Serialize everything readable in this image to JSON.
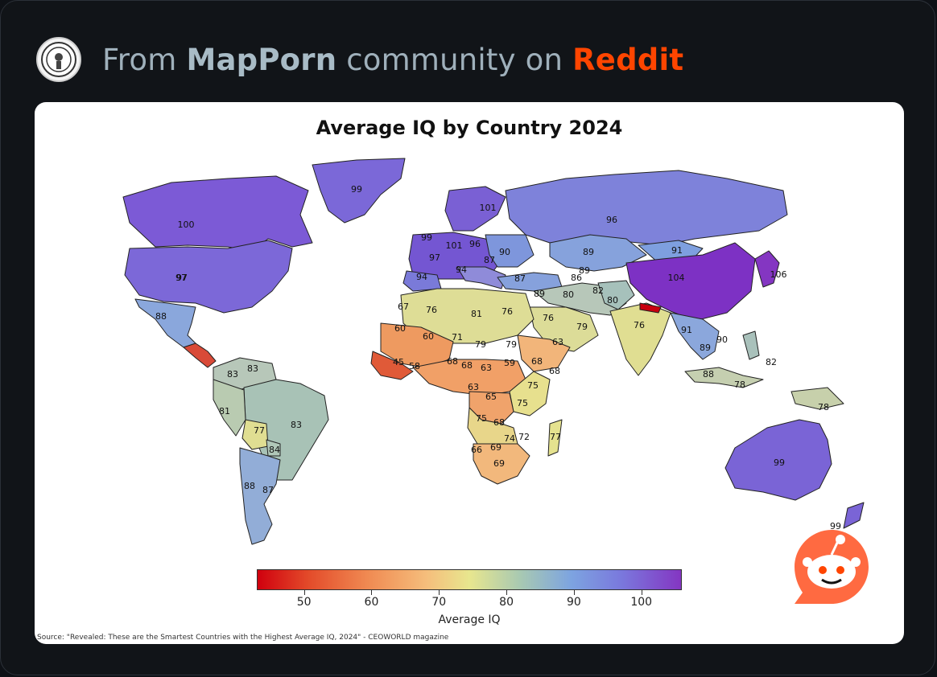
{
  "header": {
    "prefix": "From",
    "community": "MapPorn",
    "middle": "community on",
    "platform": "Reddit"
  },
  "map": {
    "title": "Average IQ by Country 2024",
    "colorbar": {
      "label": "Average IQ",
      "ticks": [
        "50",
        "60",
        "70",
        "80",
        "90",
        "100"
      ],
      "range": [
        43,
        106
      ]
    },
    "source": "Source: \"Revealed: These are the Smartest Countries with the Highest Average IQ, 2024\" - CEOWORLD magazine",
    "labels": [
      {
        "t": "99"
      },
      {
        "t": "100"
      },
      {
        "t": "97"
      },
      {
        "t": "88"
      },
      {
        "t": "97"
      },
      {
        "t": "101"
      },
      {
        "t": "96"
      },
      {
        "t": "99"
      },
      {
        "t": "101"
      },
      {
        "t": "96"
      },
      {
        "t": "97"
      },
      {
        "t": "90"
      },
      {
        "t": "87"
      },
      {
        "t": "94"
      },
      {
        "t": "94"
      },
      {
        "t": "87"
      },
      {
        "t": "89"
      },
      {
        "t": "91"
      },
      {
        "t": "104"
      },
      {
        "t": "106"
      },
      {
        "t": "89"
      },
      {
        "t": "86"
      },
      {
        "t": "80"
      },
      {
        "t": "82"
      },
      {
        "t": "80"
      },
      {
        "t": "89"
      },
      {
        "t": "76"
      },
      {
        "t": "79"
      },
      {
        "t": "63"
      },
      {
        "t": "76"
      },
      {
        "t": "91"
      },
      {
        "t": "89"
      },
      {
        "t": "90"
      },
      {
        "t": "82"
      },
      {
        "t": "88"
      },
      {
        "t": "78"
      },
      {
        "t": "78"
      },
      {
        "t": "99"
      },
      {
        "t": "99"
      },
      {
        "t": "67"
      },
      {
        "t": "76"
      },
      {
        "t": "81"
      },
      {
        "t": "76"
      },
      {
        "t": "60"
      },
      {
        "t": "60"
      },
      {
        "t": "71"
      },
      {
        "t": "79"
      },
      {
        "t": "79"
      },
      {
        "t": "45"
      },
      {
        "t": "58"
      },
      {
        "t": "68"
      },
      {
        "t": "68"
      },
      {
        "t": "63"
      },
      {
        "t": "59"
      },
      {
        "t": "68"
      },
      {
        "t": "68"
      },
      {
        "t": "63"
      },
      {
        "t": "65"
      },
      {
        "t": "75"
      },
      {
        "t": "75"
      },
      {
        "t": "75"
      },
      {
        "t": "68"
      },
      {
        "t": "74"
      },
      {
        "t": "72"
      },
      {
        "t": "66"
      },
      {
        "t": "69"
      },
      {
        "t": "69"
      },
      {
        "t": "77"
      },
      {
        "t": "83"
      },
      {
        "t": "83"
      },
      {
        "t": "81"
      },
      {
        "t": "83"
      },
      {
        "t": "77"
      },
      {
        "t": "84"
      },
      {
        "t": "88"
      },
      {
        "t": "87"
      }
    ]
  },
  "colors": {
    "low": "#d0000e",
    "mid": "#e8e68e",
    "high": "#8436c2",
    "brand": "#ff4500"
  }
}
